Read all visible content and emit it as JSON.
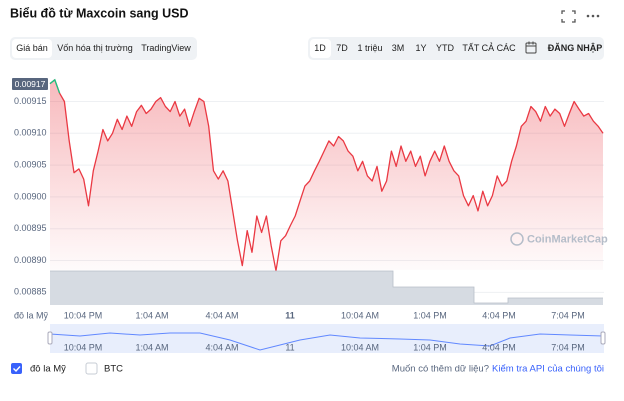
{
  "header": {
    "title": "Biểu đồ từ Maxcoin sang USD"
  },
  "tabs": [
    "Giá bán",
    "Vốn hóa thị trường",
    "TradingView"
  ],
  "ranges": [
    "1D",
    "7D",
    "1 triệu",
    "3M",
    "1Y",
    "YTD",
    "TẤT CẢ CÁC"
  ],
  "login": "ĐĂNG NHẬP",
  "chart_data": {
    "type": "line",
    "color": "#ea3943",
    "ylabel": "đô la Mỹ",
    "annotation": "0.00917",
    "watermark": "CoinMarketCap",
    "xtick_labels": [
      "10:04 PM",
      "1:04 AM",
      "4:04 AM",
      "11",
      "10:04 AM",
      "1:04 PM",
      "4:04 PM",
      "7:04 PM"
    ],
    "ylim": [
      0.008838,
      0.00919
    ],
    "yticks": [
      0.00885,
      {
        "value": 0.0089,
        "label": "0.00890"
      },
      0.00895,
      {
        "value": 0.009,
        "label": "0.00900"
      },
      0.00905,
      {
        "value": 0.0091,
        "label": "0.00910"
      },
      0.00915
    ],
    "grid": true,
    "values": [
      0.009178,
      0.009184,
      0.009163,
      0.00915,
      0.009088,
      0.009038,
      0.009044,
      0.009028,
      0.008986,
      0.009041,
      0.009072,
      0.009106,
      0.009088,
      0.0091,
      0.009122,
      0.009106,
      0.009127,
      0.009111,
      0.009134,
      0.009144,
      0.009131,
      0.009138,
      0.00915,
      0.009156,
      0.009142,
      0.009134,
      0.00915,
      0.009127,
      0.009138,
      0.009111,
      0.009134,
      0.009155,
      0.00915,
      0.009111,
      0.009041,
      0.009028,
      0.009041,
      0.009025,
      0.008978,
      0.008931,
      0.008892,
      0.008947,
      0.008913,
      0.00897,
      0.008944,
      0.00897,
      0.008923,
      0.008884,
      0.008931,
      0.008939,
      0.008955,
      0.00897,
      0.008994,
      0.009017,
      0.009025,
      0.009041,
      0.009056,
      0.009072,
      0.009088,
      0.00908,
      0.009095,
      0.009088,
      0.009072,
      0.009064,
      0.009041,
      0.009056,
      0.009033,
      0.009025,
      0.009048,
      0.009009,
      0.009025,
      0.009072,
      0.009048,
      0.00908,
      0.009056,
      0.009072,
      0.009048,
      0.009064,
      0.009033,
      0.009056,
      0.009072,
      0.009056,
      0.00908,
      0.009056,
      0.009041,
      0.009033,
      0.009002,
      0.008986,
      0.009002,
      0.008978,
      0.009009,
      0.008986,
      0.009002,
      0.009033,
      0.009017,
      0.009025,
      0.009056,
      0.00908,
      0.009111,
      0.009119,
      0.009142,
      0.009134,
      0.009119,
      0.009142,
      0.009127,
      0.009138,
      0.009131,
      0.009111,
      0.009131,
      0.00915,
      0.009138,
      0.009127,
      0.009131,
      0.009119,
      0.009111,
      0.0091
    ]
  },
  "legend": [
    "đô la Mỹ",
    "BTC"
  ],
  "footer": {
    "question": "Muốn có thêm dữ liệu?",
    "link": "Kiểm tra API của chúng tôi"
  }
}
